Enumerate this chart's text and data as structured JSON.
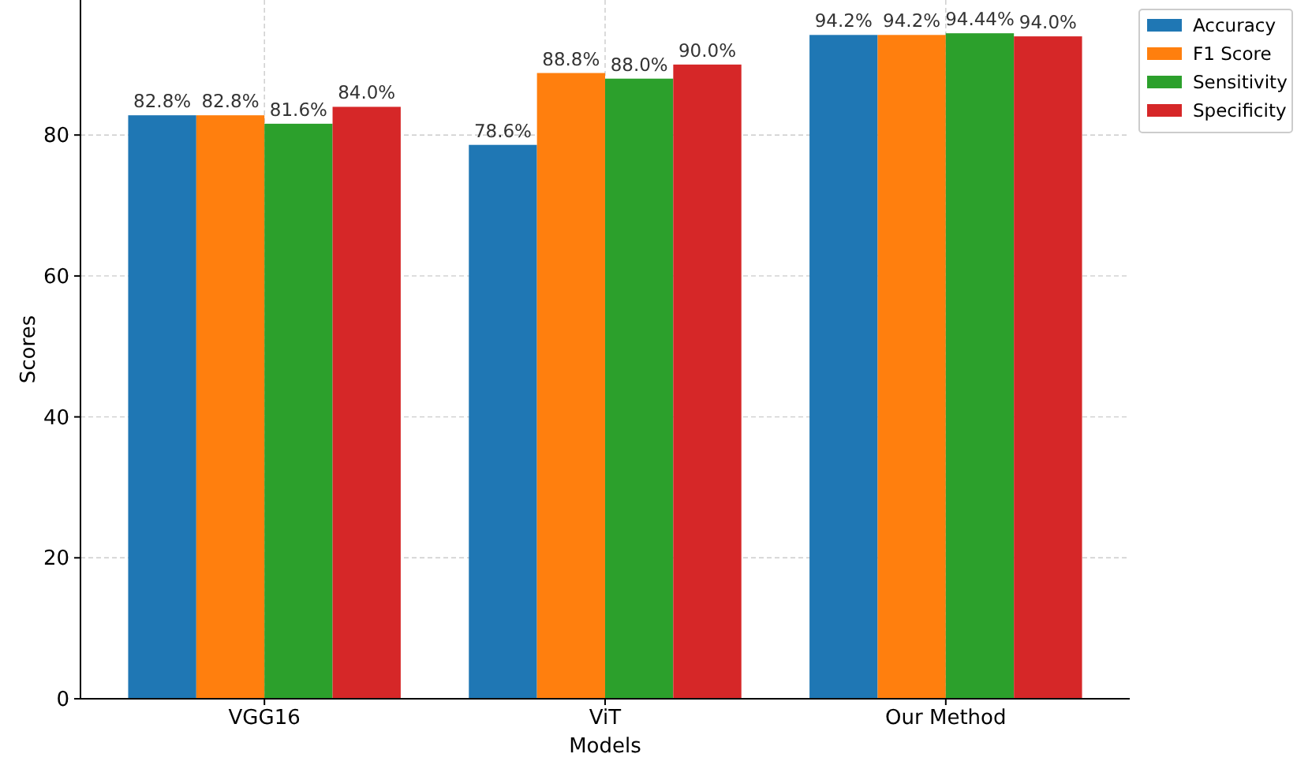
{
  "chart_data": {
    "type": "bar",
    "xlabel": "Models",
    "ylabel": "Scores",
    "categories": [
      "VGG16",
      "ViT",
      "Our Method"
    ],
    "series": [
      {
        "name": "Accuracy",
        "color": "#1f77b4",
        "values": [
          82.8,
          78.6,
          94.2
        ],
        "value_labels": [
          "82.8%",
          "78.6%",
          "94.2%"
        ]
      },
      {
        "name": "F1 Score",
        "color": "#ff7f0e",
        "values": [
          82.8,
          88.8,
          94.2
        ],
        "value_labels": [
          "82.8%",
          "88.8%",
          "94.2%"
        ]
      },
      {
        "name": "Sensitivity",
        "color": "#2ca02c",
        "values": [
          81.6,
          88.0,
          94.44
        ],
        "value_labels": [
          "81.6%",
          "88.0%",
          "94.44%"
        ]
      },
      {
        "name": "Specificity",
        "color": "#d62728",
        "values": [
          84.0,
          90.0,
          94.0
        ],
        "value_labels": [
          "84.0%",
          "90.0%",
          "94.0%"
        ]
      }
    ],
    "ylim": [
      0,
      99.16
    ],
    "yticks": [
      0,
      20,
      40,
      60,
      80
    ],
    "grid": true,
    "legend": "top right"
  }
}
